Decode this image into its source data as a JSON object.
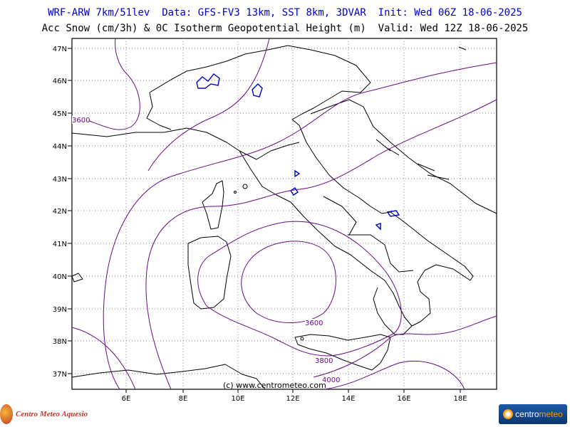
{
  "header": {
    "line1": "WRF-ARW 7km/51lev  Data: GFS-FV3 13km, SST 8km, 3DVAR  Init: Wed 06Z 18-06-2025",
    "line2": "Acc Snow (cm/3h) & 0C Isotherm Geopotential Height (m)  Valid: Wed 12Z 18-06-2025"
  },
  "map": {
    "lat_labels": [
      "47N",
      "46N",
      "45N",
      "44N",
      "43N",
      "42N",
      "41N",
      "40N",
      "39N",
      "38N",
      "37N"
    ],
    "lon_labels": [
      "6E",
      "8E",
      "10E",
      "12E",
      "14E",
      "16E",
      "18E"
    ],
    "contour_labels": [
      "3600",
      "3600",
      "3800",
      "4000"
    ],
    "copyright": "(c) www.centrometeo.com",
    "colors": {
      "contour": "#6a0a8a",
      "coast": "#000000",
      "lakes": "#0000cc",
      "grid": "#888888"
    }
  },
  "footer": {
    "left_logo_text": "Centro Meteo Aquesio",
    "right_logo_brand": "centro",
    "right_logo_brand2": "meteo"
  }
}
